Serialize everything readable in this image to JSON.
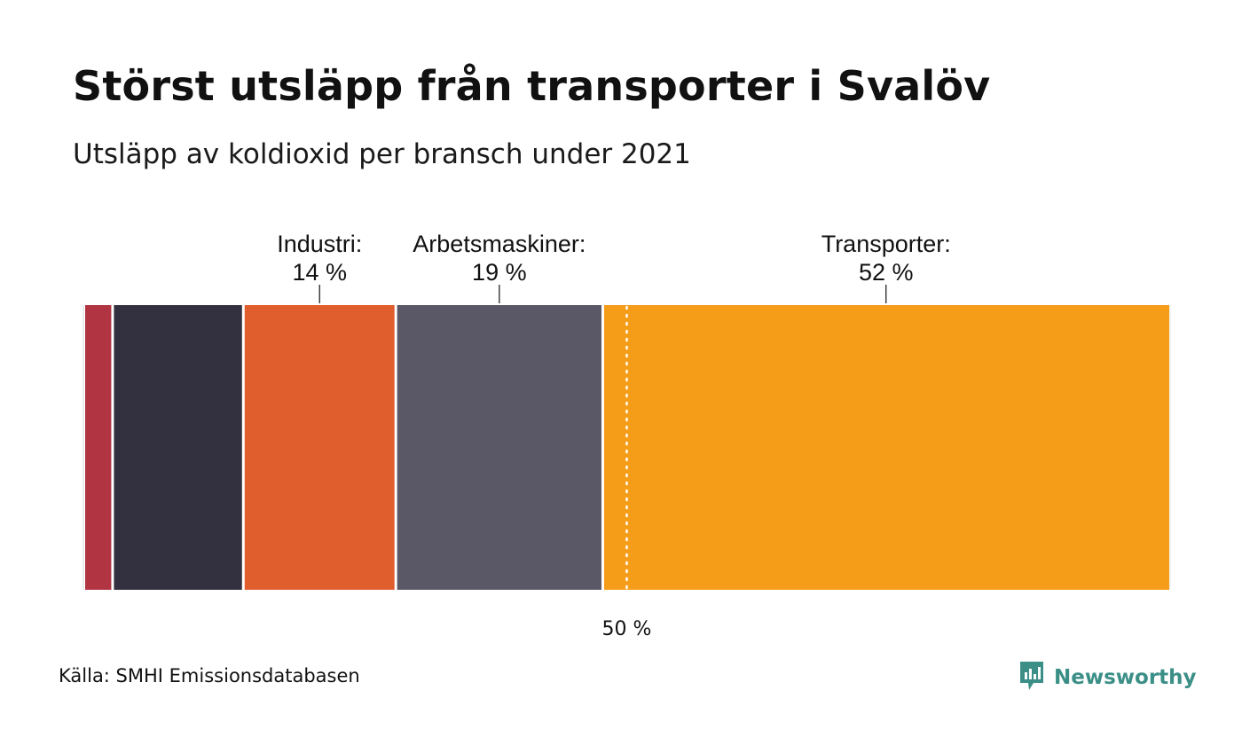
{
  "title": "Störst utsläpp från transporter i Svalöv",
  "subtitle": "Utsläpp av koldioxid per bransch under 2021",
  "source": "Källa: SMHI Emissionsdatabasen",
  "brand": {
    "name": "Newsworthy",
    "icon": "newsworthy-logo-icon",
    "color": "#3b8f87"
  },
  "chart_data": {
    "type": "stacked-bar-100",
    "orientation": "horizontal",
    "title": "Störst utsläpp från transporter i Svalöv",
    "subtitle": "Utsläpp av koldioxid per bransch under 2021",
    "xlim": [
      0,
      100
    ],
    "reference_line": {
      "value": 50,
      "label": "50 %",
      "style": "dotted"
    },
    "segments": [
      {
        "name": "",
        "value": 2.6,
        "color": "#b03441",
        "label": "",
        "value_label": ""
      },
      {
        "name": "",
        "value": 12,
        "color": "#33313f",
        "label": "",
        "value_label": ""
      },
      {
        "name": "Industri",
        "value": 14,
        "color": "#e05d2e",
        "label": "Industri:",
        "value_label": "14 %"
      },
      {
        "name": "Arbetsmaskiner",
        "value": 19,
        "color": "#5a5866",
        "label": "Arbetsmaskiner:",
        "value_label": "19 %"
      },
      {
        "name": "Transporter",
        "value": 52,
        "color": "#f59c18",
        "label": "Transporter:",
        "value_label": "52 %"
      }
    ]
  }
}
